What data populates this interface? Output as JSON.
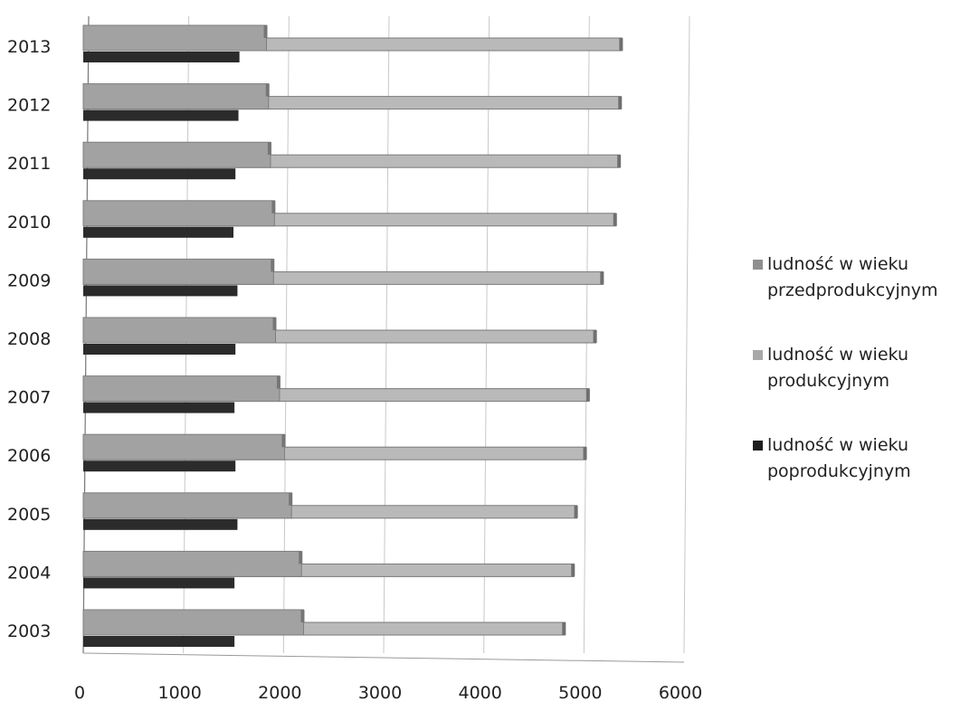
{
  "chart_data": {
    "type": "bar",
    "orientation": "horizontal",
    "categories": [
      "2003",
      "2004",
      "2005",
      "2006",
      "2007",
      "2008",
      "2009",
      "2010",
      "2011",
      "2012",
      "2013"
    ],
    "series": [
      {
        "name": "ludność w wieku przedprodukcyjnym",
        "color": "#9a9a9a",
        "values": [
          2200,
          2180,
          2080,
          2010,
          1960,
          1920,
          1900,
          1910,
          1870,
          1850,
          1830
        ]
      },
      {
        "name": "ludność w wieku produkcyjnym",
        "color": "#b4b4b4",
        "values": [
          4810,
          4900,
          4930,
          5020,
          5050,
          5120,
          5190,
          5320,
          5360,
          5370,
          5380
        ]
      },
      {
        "name": "ludność w wieku poprodukcyjnym",
        "color": "#2b2b2b",
        "values": [
          1510,
          1510,
          1540,
          1520,
          1510,
          1520,
          1540,
          1500,
          1520,
          1550,
          1560
        ]
      }
    ],
    "legend_lines": [
      [
        "ludność w wieku",
        "przedprodukcyjnym"
      ],
      [
        "ludność w wieku",
        "produkcyjnym"
      ],
      [
        "ludność w wieku",
        "poprodukcyjnym"
      ]
    ],
    "xlim": [
      0,
      6000
    ],
    "xticks": [
      "0",
      "1000",
      "2000",
      "3000",
      "4000",
      "5000",
      "6000"
    ],
    "grid": true,
    "legend_position": "right",
    "title": "",
    "xlabel": "",
    "ylabel": ""
  }
}
